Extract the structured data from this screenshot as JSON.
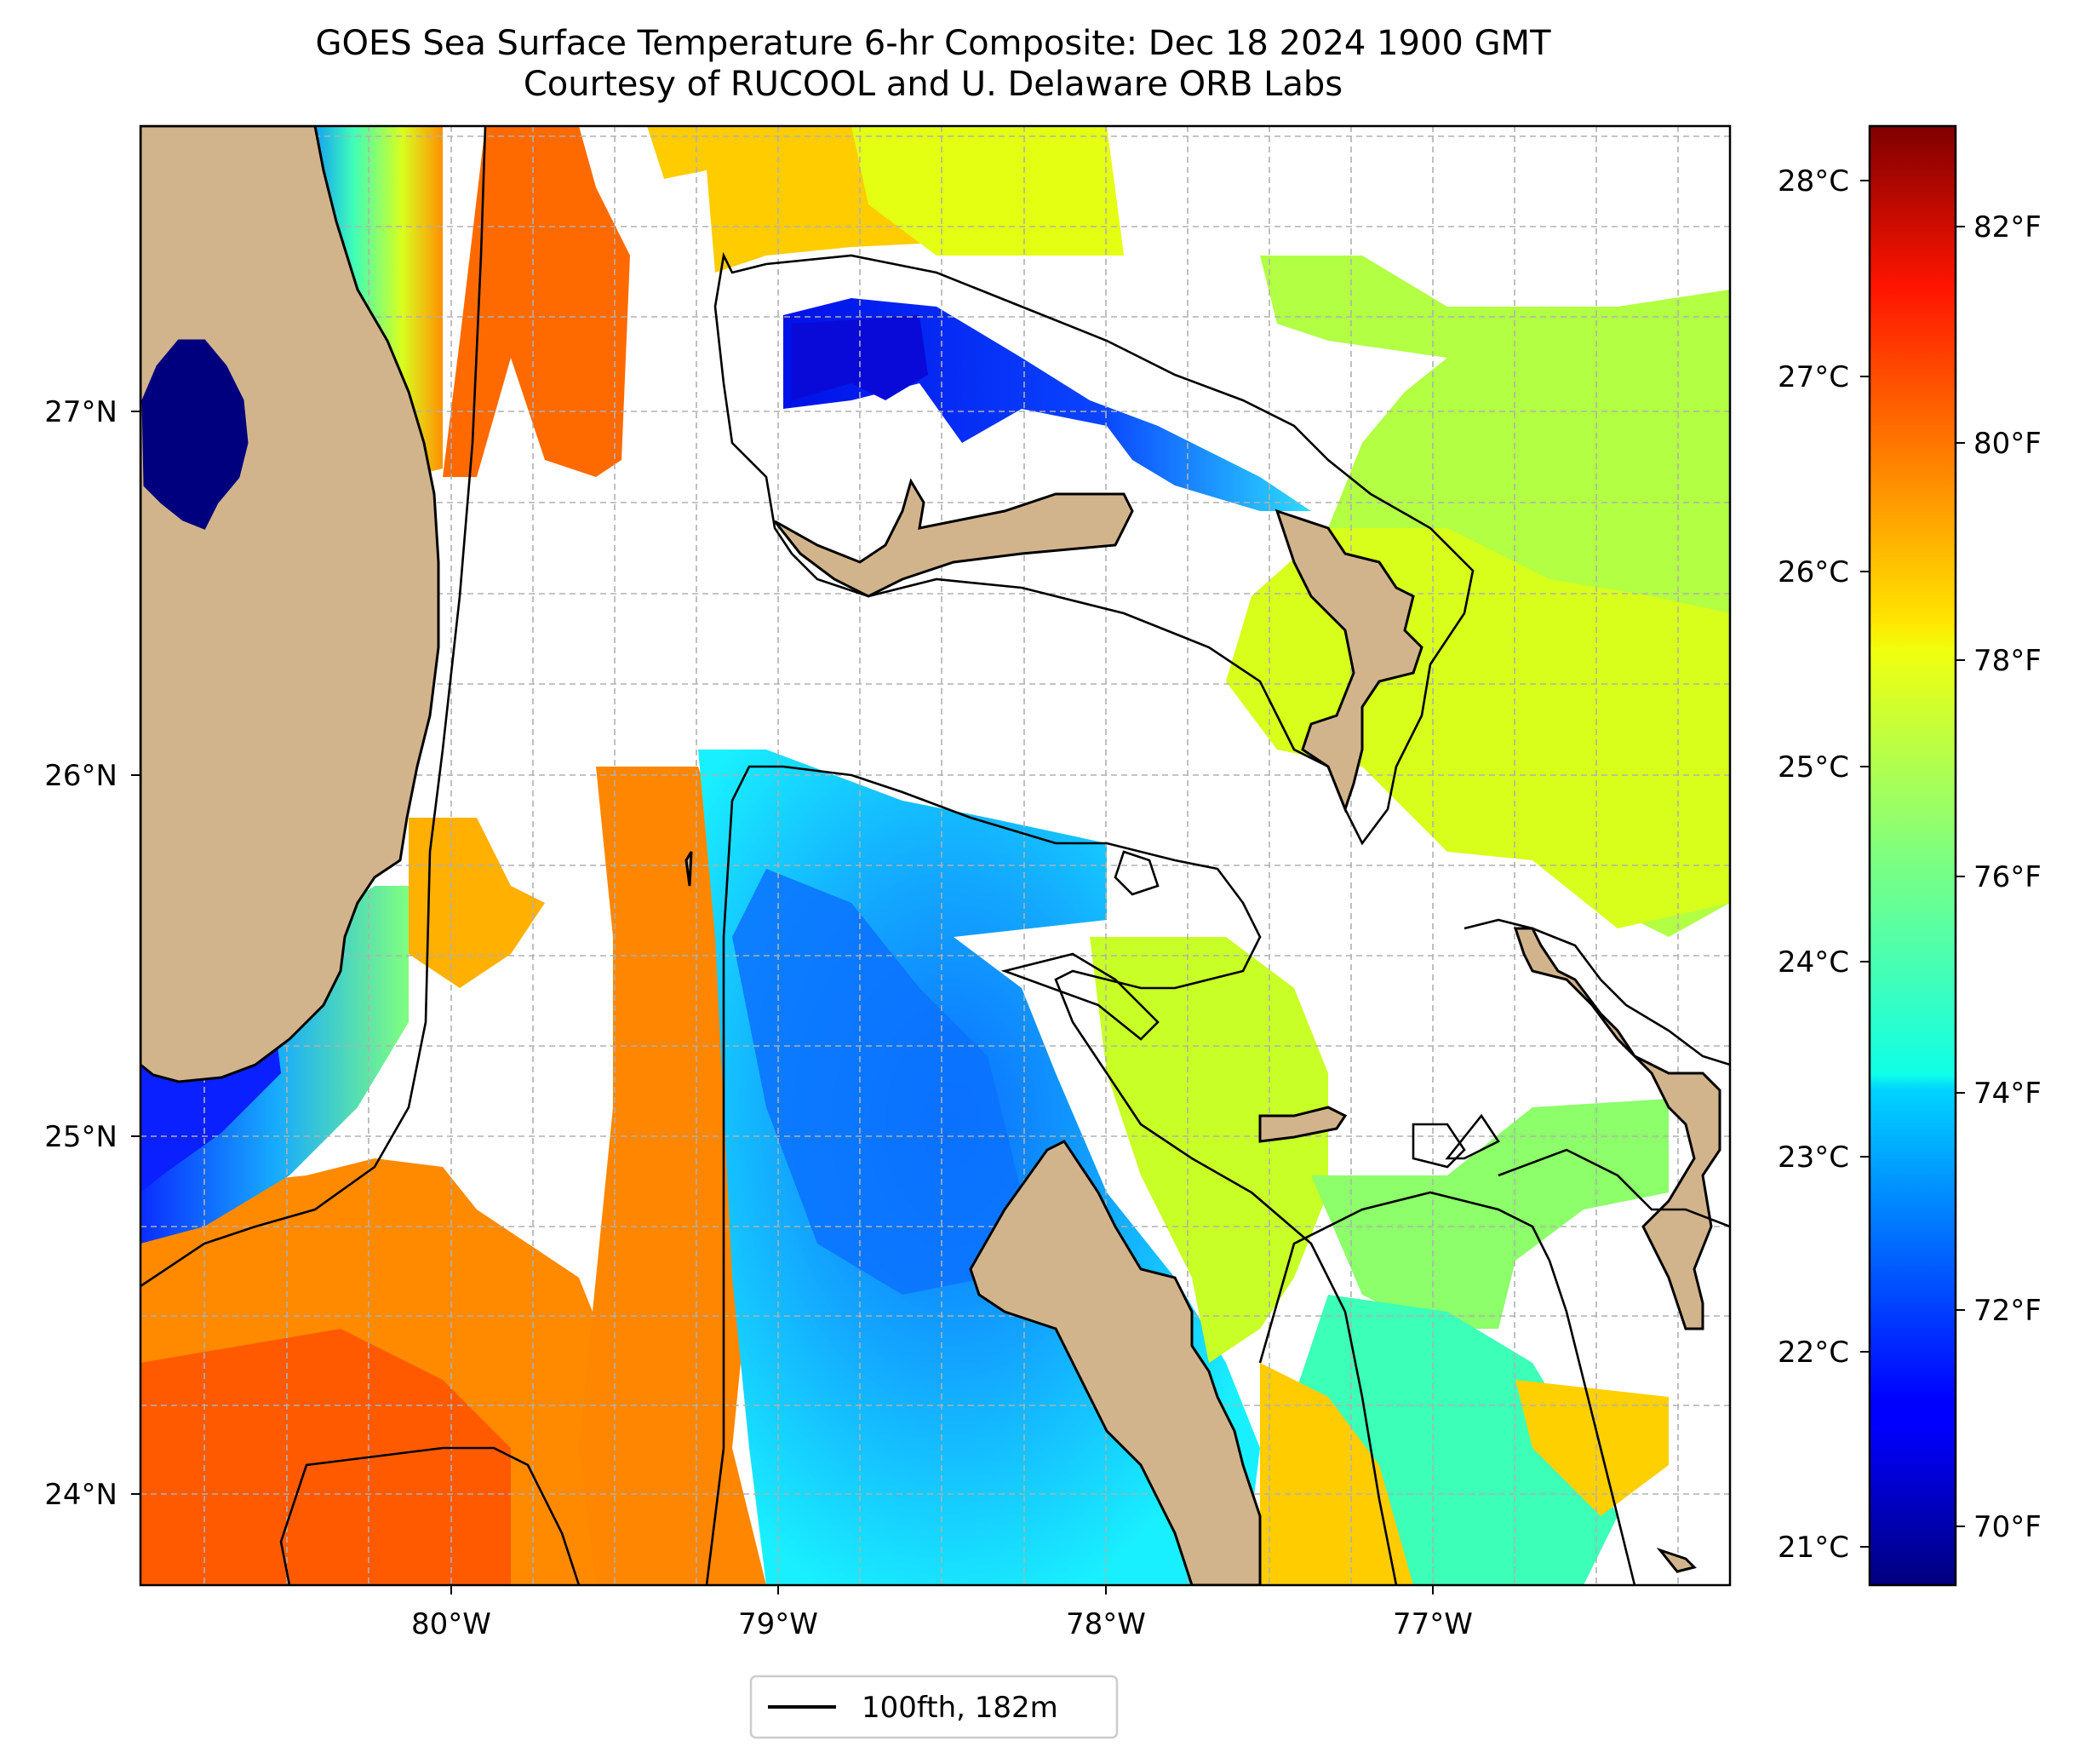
{
  "title": {
    "line1": "GOES Sea Surface Temperature 6-hr Composite: Dec 18 2024 1900 GMT",
    "line2": "Courtesy of RUCOOL and U. Delaware ORB Labs"
  },
  "map": {
    "lon_range": [
      -80.95,
      -76.1
    ],
    "lat_range": [
      23.75,
      27.8
    ],
    "lon_ticks": [
      "80°W",
      "79°W",
      "78°W",
      "77°W"
    ],
    "lat_ticks": [
      "24°N",
      "25°N",
      "26°N",
      "27°N"
    ],
    "land_color": "#d2b48c",
    "gridlines": "dashed gray"
  },
  "colorbar": {
    "celsius_ticks": [
      "21°C",
      "22°C",
      "23°C",
      "24°C",
      "25°C",
      "26°C",
      "27°C",
      "28°C"
    ],
    "fahrenheit_ticks": [
      "70°F",
      "72°F",
      "74°F",
      "76°F",
      "78°F",
      "80°F",
      "82°F"
    ],
    "range_f": [
      69.2,
      83.3
    ],
    "colormap": "jet"
  },
  "legend": {
    "label": "100fth, 182m",
    "line_color": "#000000"
  }
}
